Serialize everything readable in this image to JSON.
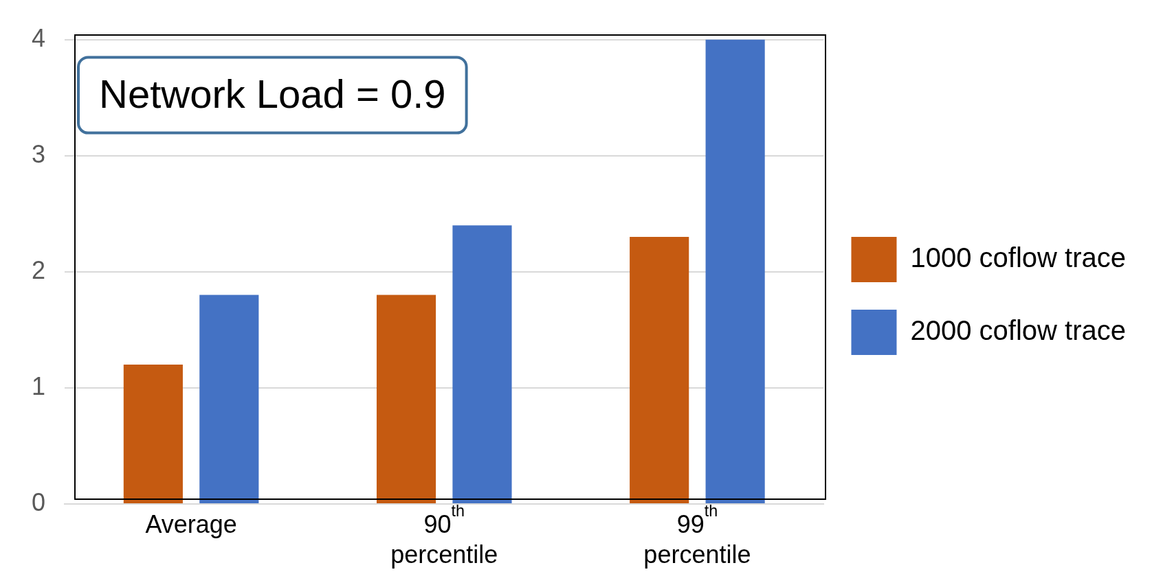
{
  "chart_data": {
    "type": "bar",
    "categories": [
      "Average",
      "90$^{th}$ percentile",
      "99$^{th}$ percentile"
    ],
    "series": [
      {
        "name": "1000 coflow trace",
        "color": "#c55a11",
        "values": [
          1.2,
          1.8,
          2.3
        ]
      },
      {
        "name": "2000 coflow trace",
        "color": "#4472c4",
        "values": [
          1.8,
          2.4,
          4.0
        ]
      }
    ],
    "ylim": [
      0,
      4
    ],
    "yticks": [
      0,
      1,
      2,
      3,
      4
    ],
    "grid": "y",
    "legend": "right",
    "annotations": [
      "Network Load = 0.9"
    ]
  }
}
